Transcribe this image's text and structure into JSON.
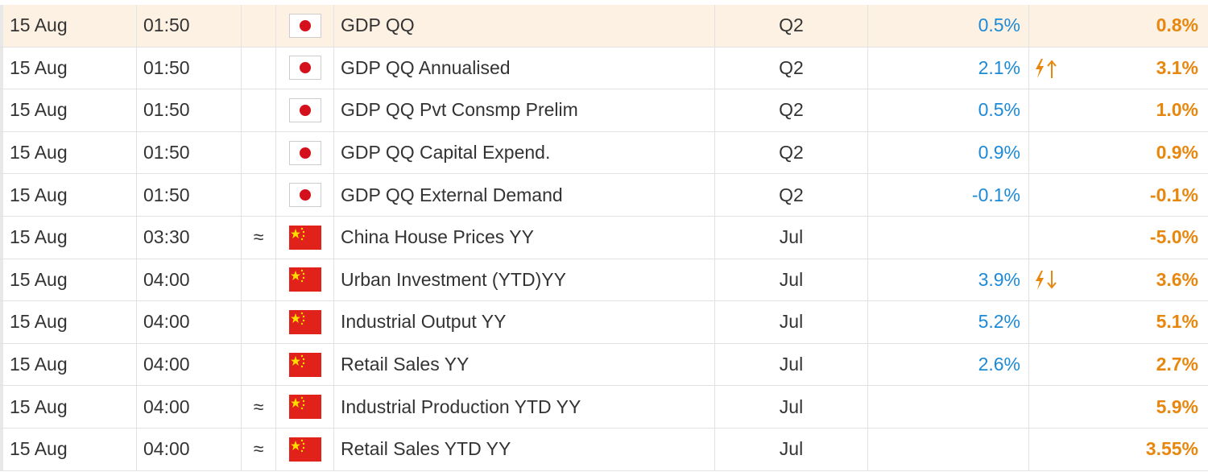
{
  "rows": [
    {
      "date": "15 Aug",
      "time": "01:50",
      "event": "GDP QQ",
      "period": "Q2",
      "actual": "0.5%",
      "forecast": "0.8%"
    },
    {
      "date": "15 Aug",
      "time": "01:50",
      "event": "GDP QQ Annualised",
      "period": "Q2",
      "actual": "2.1%",
      "forecast": "3.1%"
    },
    {
      "date": "15 Aug",
      "time": "01:50",
      "event": "GDP QQ Pvt Consmp Prelim",
      "period": "Q2",
      "actual": "0.5%",
      "forecast": "1.0%"
    },
    {
      "date": "15 Aug",
      "time": "01:50",
      "event": "GDP QQ Capital Expend.",
      "period": "Q2",
      "actual": "0.9%",
      "forecast": "0.9%"
    },
    {
      "date": "15 Aug",
      "time": "01:50",
      "event": "GDP QQ External Demand",
      "period": "Q2",
      "actual": "-0.1%",
      "forecast": "-0.1%"
    },
    {
      "date": "15 Aug",
      "time": "03:30",
      "marker": "≈",
      "event": "China House Prices YY",
      "period": "Jul",
      "forecast": "-5.0%"
    },
    {
      "date": "15 Aug",
      "time": "04:00",
      "event": "Urban Investment (YTD)YY",
      "period": "Jul",
      "actual": "3.9%",
      "forecast": "3.6%"
    },
    {
      "date": "15 Aug",
      "time": "04:00",
      "event": "Industrial Output YY",
      "period": "Jul",
      "actual": "5.2%",
      "forecast": "5.1%"
    },
    {
      "date": "15 Aug",
      "time": "04:00",
      "event": "Retail Sales YY",
      "period": "Jul",
      "actual": "2.6%",
      "forecast": "2.7%"
    },
    {
      "date": "15 Aug",
      "time": "04:00",
      "marker": "≈",
      "event": "Industrial Production YTD YY",
      "period": "Jul",
      "forecast": "5.9%"
    },
    {
      "date": "15 Aug",
      "time": "04:00",
      "marker": "≈",
      "event": "Retail Sales YTD YY",
      "period": "Jul",
      "forecast": "3.55%"
    }
  ]
}
